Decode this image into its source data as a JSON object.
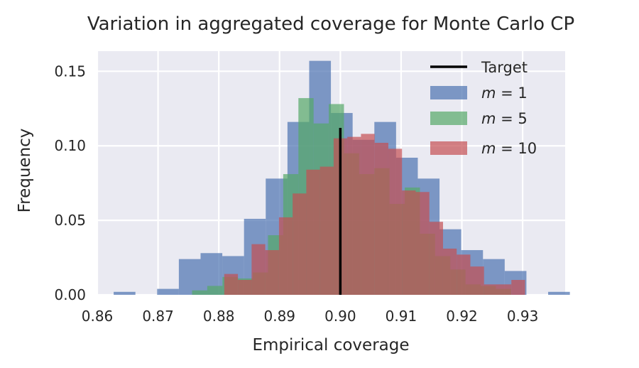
{
  "chart_data": {
    "type": "histogram",
    "title": "Variation in aggregated coverage for Monte Carlo CP",
    "xlabel": "Empirical coverage",
    "ylabel": "Frequency",
    "xlim": [
      0.86,
      0.937
    ],
    "ylim": [
      0,
      0.1635
    ],
    "xticks": [
      0.86,
      0.87,
      0.88,
      0.89,
      0.9,
      0.91,
      0.92,
      0.93
    ],
    "xtick_labels": [
      "0.86",
      "0.87",
      "0.88",
      "0.89",
      "0.90",
      "0.91",
      "0.92",
      "0.93"
    ],
    "yticks": [
      0.0,
      0.05,
      0.1,
      0.15
    ],
    "ytick_labels": [
      "0.00",
      "0.05",
      "0.10",
      "0.15"
    ],
    "grid": true,
    "legend_position": "top-right",
    "target": {
      "label": "Target",
      "x": 0.9,
      "y_top": 0.112,
      "color": "#000000"
    },
    "series": [
      {
        "name": "m = 1",
        "legend_var": "m",
        "legend_value": "1",
        "color": "#4c72b0",
        "bin_start": 0.8627,
        "bin_width": 0.003575,
        "values": [
          0.002,
          0.0,
          0.004,
          0.024,
          0.028,
          0.026,
          0.051,
          0.078,
          0.116,
          0.157,
          0.122,
          0.104,
          0.116,
          0.092,
          0.078,
          0.044,
          0.03,
          0.024,
          0.016,
          0.0,
          0.002
        ]
      },
      {
        "name": "m = 5",
        "legend_var": "m",
        "legend_value": "5",
        "color": "#55a868",
        "bin_start": 0.8756,
        "bin_width": 0.0025,
        "values": [
          0.003,
          0.006,
          0.012,
          0.011,
          0.015,
          0.04,
          0.081,
          0.132,
          0.115,
          0.128,
          0.095,
          0.081,
          0.085,
          0.061,
          0.072,
          0.041,
          0.026,
          0.017,
          0.007,
          0.006,
          0.004
        ]
      },
      {
        "name": "m = 10",
        "legend_var": "m",
        "legend_value": "10",
        "color": "#c44e52",
        "bin_start": 0.8809,
        "bin_width": 0.00225,
        "values": [
          0.014,
          0.01,
          0.034,
          0.03,
          0.052,
          0.068,
          0.084,
          0.086,
          0.105,
          0.106,
          0.108,
          0.102,
          0.098,
          0.07,
          0.069,
          0.049,
          0.031,
          0.027,
          0.019,
          0.007,
          0.007,
          0.01
        ]
      }
    ]
  }
}
